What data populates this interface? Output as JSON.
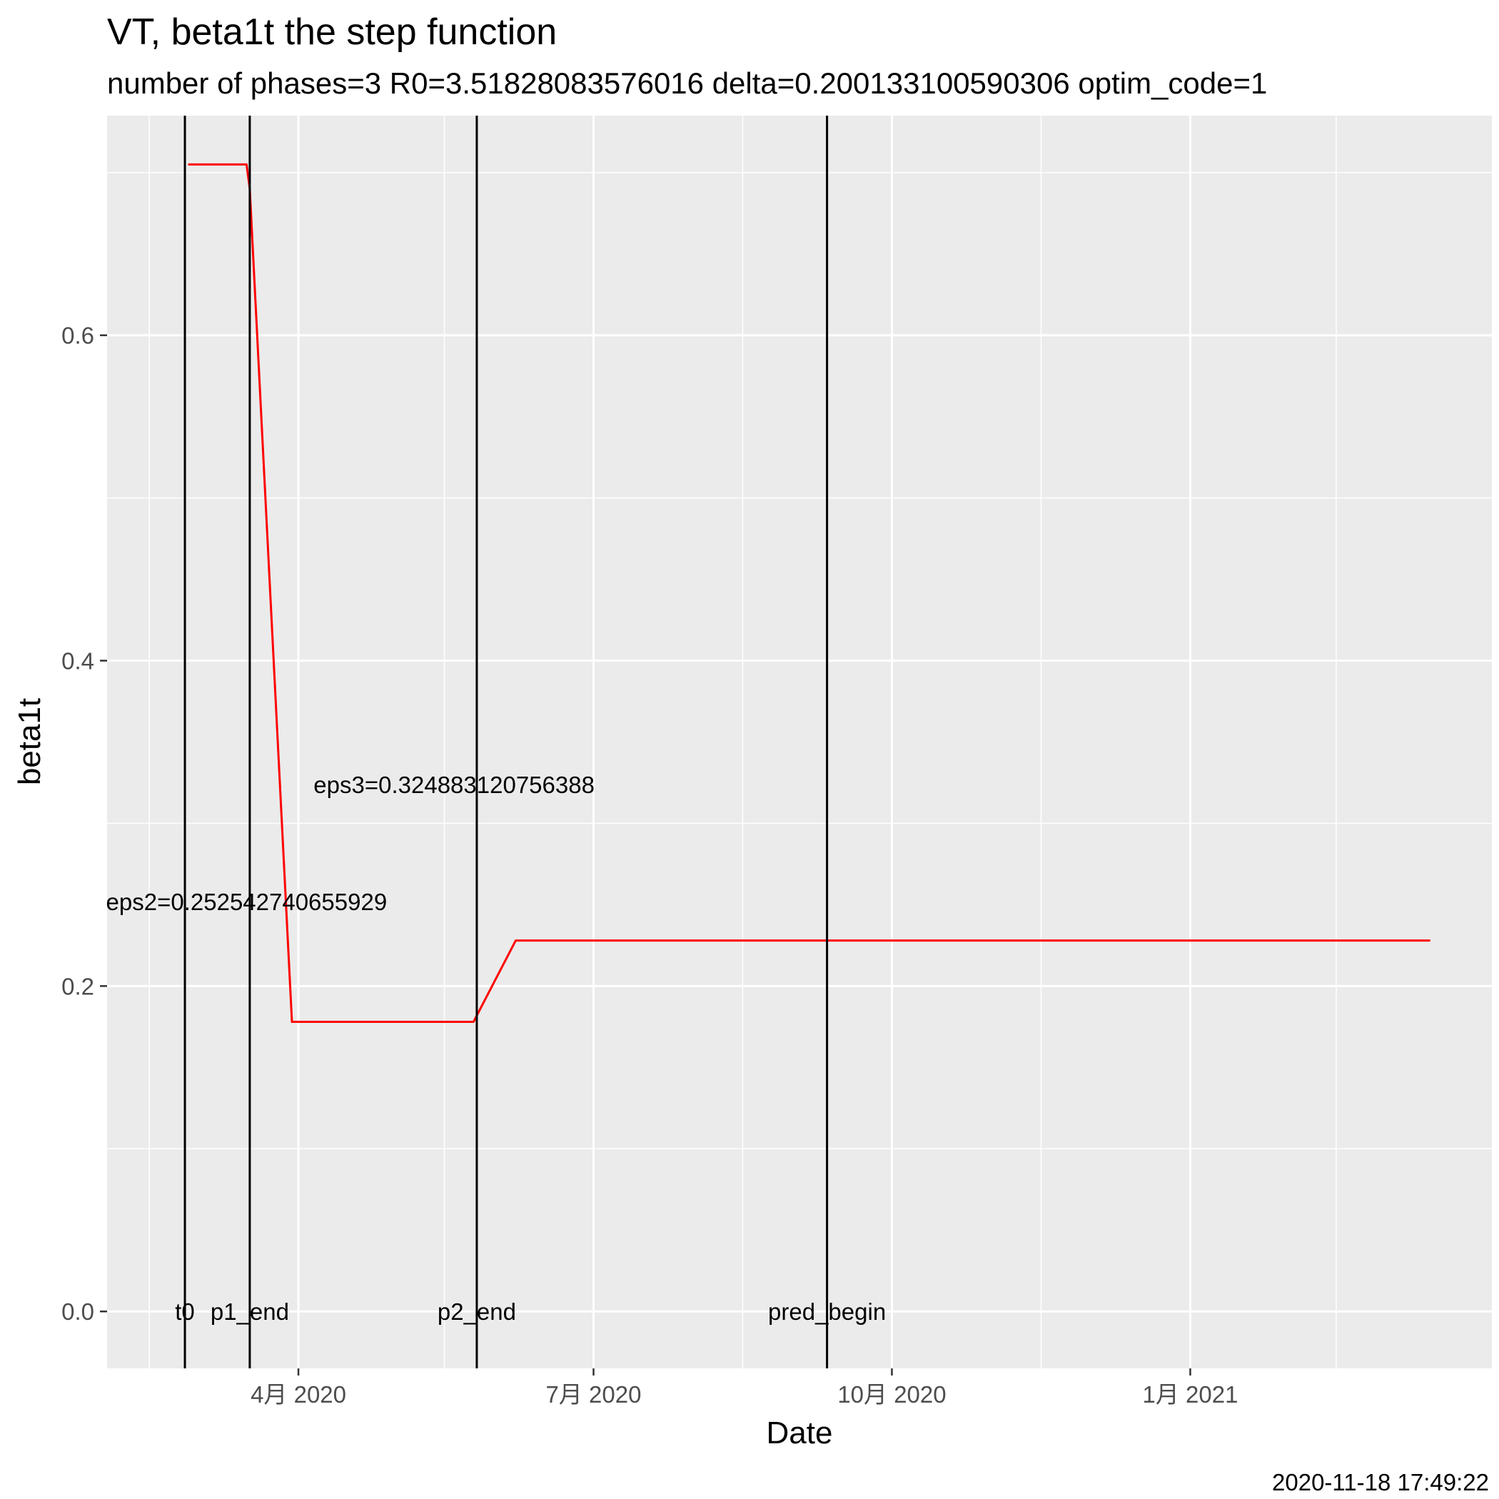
{
  "chart_data": {
    "type": "line",
    "title": "VT, beta1t the step function",
    "subtitle": "number of phases=3   R0=3.51828083576016   delta=0.200133100590306   optim_code=1",
    "xlabel": "Date",
    "ylabel": "beta1t",
    "caption": "2020-11-18 17:49:22",
    "xlim": [
      "2020-02-02",
      "2021-04-04"
    ],
    "ylim": [
      -0.035,
      0.735
    ],
    "grid": true,
    "x_ticks": [
      {
        "date": "2020-04-01",
        "label": "4月 2020"
      },
      {
        "date": "2020-07-01",
        "label": "7月 2020"
      },
      {
        "date": "2020-10-01",
        "label": "10月 2020"
      },
      {
        "date": "2021-01-01",
        "label": "1月 2021"
      }
    ],
    "x_minor_ticks": [
      "2020-02-15",
      "2020-05-16",
      "2020-08-16",
      "2020-11-16",
      "2021-02-15"
    ],
    "y_ticks": [
      {
        "value": 0.0,
        "label": "0.0"
      },
      {
        "value": 0.2,
        "label": "0.2"
      },
      {
        "value": 0.4,
        "label": "0.4"
      },
      {
        "value": 0.6,
        "label": "0.6"
      }
    ],
    "y_minor_ticks": [
      0.1,
      0.3,
      0.5,
      0.7
    ],
    "series": [
      {
        "color": "#ff0000",
        "points": [
          {
            "x": "2020-02-27",
            "y": 0.705
          },
          {
            "x": "2020-03-16",
            "y": 0.705
          },
          {
            "x": "2020-03-17",
            "y": 0.69
          },
          {
            "x": "2020-03-30",
            "y": 0.178
          },
          {
            "x": "2020-05-25",
            "y": 0.178
          },
          {
            "x": "2020-06-07",
            "y": 0.228
          },
          {
            "x": "2021-03-16",
            "y": 0.228
          }
        ]
      }
    ],
    "vlines": [
      {
        "date": "2020-02-26",
        "label": "t0",
        "label_dx": 0
      },
      {
        "date": "2020-03-17",
        "label": "p1_end",
        "label_dx": 0
      },
      {
        "date": "2020-05-26",
        "label": "p2_end",
        "label_dx": 0
      },
      {
        "date": "2020-09-11",
        "label": "pred_begin",
        "label_dx": 0
      }
    ],
    "annotations": [
      {
        "text": "eps2=0.252542740655929",
        "x": "2020-03-16",
        "y": 0.252
      },
      {
        "text": "eps3=0.324883120756388",
        "x": "2020-05-19",
        "y": 0.324
      }
    ]
  }
}
